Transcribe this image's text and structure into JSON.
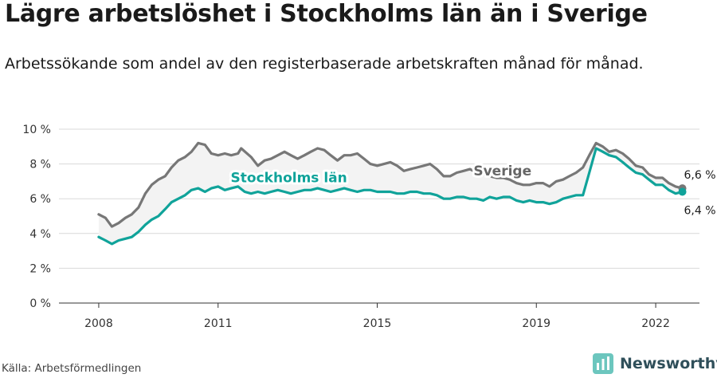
{
  "title": "Lägre arbetslöshet i Stockholms län än i Sverige",
  "subtitle": "Arbetssökande som andel av den registerbaserade arbetskraften månad för månad.",
  "source": "Källa: Arbetsförmedlingen",
  "brand": {
    "name": "Newsworthy",
    "icon": "bar-chart-logo-icon",
    "color": "#2f4f5a"
  },
  "chart_data": {
    "type": "line",
    "title": "Lägre arbetslöshet i Stockholms län än i Sverige",
    "xlabel": "",
    "ylabel": "",
    "ylim": [
      0,
      10
    ],
    "y_ticks": [
      0,
      2,
      4,
      6,
      8,
      10
    ],
    "y_tick_labels": [
      "0 %",
      "2 %",
      "4 %",
      "6 %",
      "8 %",
      "10 %"
    ],
    "x_ticks": [
      2008,
      2011,
      2015,
      2019,
      2022
    ],
    "x_tick_labels": [
      "2008",
      "2011",
      "2015",
      "2019",
      "2022"
    ],
    "grid": "horizontal",
    "area_between_series": true,
    "series": [
      {
        "name": "Sverige",
        "color": "#777777",
        "end_label": "6,6 %",
        "points": [
          [
            2008.0,
            5.1
          ],
          [
            2008.17,
            4.9
          ],
          [
            2008.33,
            4.4
          ],
          [
            2008.5,
            4.6
          ],
          [
            2008.67,
            4.9
          ],
          [
            2008.83,
            5.1
          ],
          [
            2009.0,
            5.5
          ],
          [
            2009.17,
            6.3
          ],
          [
            2009.33,
            6.8
          ],
          [
            2009.5,
            7.1
          ],
          [
            2009.67,
            7.3
          ],
          [
            2009.83,
            7.8
          ],
          [
            2010.0,
            8.2
          ],
          [
            2010.17,
            8.4
          ],
          [
            2010.33,
            8.7
          ],
          [
            2010.5,
            9.2
          ],
          [
            2010.67,
            9.1
          ],
          [
            2010.83,
            8.6
          ],
          [
            2011.0,
            8.5
          ],
          [
            2011.17,
            8.6
          ],
          [
            2011.33,
            8.5
          ],
          [
            2011.5,
            8.6
          ],
          [
            2011.58,
            8.9
          ],
          [
            2011.83,
            8.4
          ],
          [
            2012.0,
            7.9
          ],
          [
            2012.17,
            8.2
          ],
          [
            2012.33,
            8.3
          ],
          [
            2012.5,
            8.5
          ],
          [
            2012.67,
            8.7
          ],
          [
            2012.83,
            8.5
          ],
          [
            2013.0,
            8.3
          ],
          [
            2013.17,
            8.5
          ],
          [
            2013.33,
            8.7
          ],
          [
            2013.5,
            8.9
          ],
          [
            2013.67,
            8.8
          ],
          [
            2013.83,
            8.5
          ],
          [
            2014.0,
            8.2
          ],
          [
            2014.17,
            8.5
          ],
          [
            2014.33,
            8.5
          ],
          [
            2014.5,
            8.6
          ],
          [
            2014.67,
            8.3
          ],
          [
            2014.83,
            8.0
          ],
          [
            2015.0,
            7.9
          ],
          [
            2015.17,
            8.0
          ],
          [
            2015.33,
            8.1
          ],
          [
            2015.5,
            7.9
          ],
          [
            2015.67,
            7.6
          ],
          [
            2015.83,
            7.7
          ],
          [
            2016.0,
            7.8
          ],
          [
            2016.17,
            7.9
          ],
          [
            2016.33,
            8.0
          ],
          [
            2016.5,
            7.7
          ],
          [
            2016.67,
            7.3
          ],
          [
            2016.83,
            7.3
          ],
          [
            2017.0,
            7.5
          ],
          [
            2017.17,
            7.6
          ],
          [
            2017.33,
            7.7
          ],
          [
            2017.5,
            7.5
          ],
          [
            2017.67,
            7.4
          ],
          [
            2017.83,
            7.3
          ],
          [
            2018.0,
            7.2
          ],
          [
            2018.17,
            7.2
          ],
          [
            2018.33,
            7.1
          ],
          [
            2018.5,
            6.9
          ],
          [
            2018.67,
            6.8
          ],
          [
            2018.83,
            6.8
          ],
          [
            2019.0,
            6.9
          ],
          [
            2019.17,
            6.9
          ],
          [
            2019.33,
            6.7
          ],
          [
            2019.5,
            7.0
          ],
          [
            2019.67,
            7.1
          ],
          [
            2019.83,
            7.3
          ],
          [
            2020.0,
            7.5
          ],
          [
            2020.17,
            7.8
          ],
          [
            2020.33,
            8.5
          ],
          [
            2020.5,
            9.2
          ],
          [
            2020.67,
            9.0
          ],
          [
            2020.83,
            8.7
          ],
          [
            2021.0,
            8.8
          ],
          [
            2021.17,
            8.6
          ],
          [
            2021.33,
            8.3
          ],
          [
            2021.5,
            7.9
          ],
          [
            2021.67,
            7.8
          ],
          [
            2021.83,
            7.4
          ],
          [
            2022.0,
            7.2
          ],
          [
            2022.17,
            7.2
          ],
          [
            2022.33,
            6.9
          ],
          [
            2022.5,
            6.7
          ],
          [
            2022.67,
            6.6
          ]
        ]
      },
      {
        "name": "Stockholms län",
        "color": "#10a39a",
        "end_label": "6,4 %",
        "points": [
          [
            2008.0,
            3.8
          ],
          [
            2008.17,
            3.6
          ],
          [
            2008.33,
            3.4
          ],
          [
            2008.5,
            3.6
          ],
          [
            2008.67,
            3.7
          ],
          [
            2008.83,
            3.8
          ],
          [
            2009.0,
            4.1
          ],
          [
            2009.17,
            4.5
          ],
          [
            2009.33,
            4.8
          ],
          [
            2009.5,
            5.0
          ],
          [
            2009.67,
            5.4
          ],
          [
            2009.83,
            5.8
          ],
          [
            2010.0,
            6.0
          ],
          [
            2010.17,
            6.2
          ],
          [
            2010.33,
            6.5
          ],
          [
            2010.5,
            6.6
          ],
          [
            2010.67,
            6.4
          ],
          [
            2010.83,
            6.6
          ],
          [
            2011.0,
            6.7
          ],
          [
            2011.17,
            6.5
          ],
          [
            2011.33,
            6.6
          ],
          [
            2011.5,
            6.7
          ],
          [
            2011.67,
            6.4
          ],
          [
            2011.83,
            6.3
          ],
          [
            2012.0,
            6.4
          ],
          [
            2012.17,
            6.3
          ],
          [
            2012.33,
            6.4
          ],
          [
            2012.5,
            6.5
          ],
          [
            2012.67,
            6.4
          ],
          [
            2012.83,
            6.3
          ],
          [
            2013.0,
            6.4
          ],
          [
            2013.17,
            6.5
          ],
          [
            2013.33,
            6.5
          ],
          [
            2013.5,
            6.6
          ],
          [
            2013.67,
            6.5
          ],
          [
            2013.83,
            6.4
          ],
          [
            2014.0,
            6.5
          ],
          [
            2014.17,
            6.6
          ],
          [
            2014.33,
            6.5
          ],
          [
            2014.5,
            6.4
          ],
          [
            2014.67,
            6.5
          ],
          [
            2014.83,
            6.5
          ],
          [
            2015.0,
            6.4
          ],
          [
            2015.17,
            6.4
          ],
          [
            2015.33,
            6.4
          ],
          [
            2015.5,
            6.3
          ],
          [
            2015.67,
            6.3
          ],
          [
            2015.83,
            6.4
          ],
          [
            2016.0,
            6.4
          ],
          [
            2016.17,
            6.3
          ],
          [
            2016.33,
            6.3
          ],
          [
            2016.5,
            6.2
          ],
          [
            2016.67,
            6.0
          ],
          [
            2016.83,
            6.0
          ],
          [
            2017.0,
            6.1
          ],
          [
            2017.17,
            6.1
          ],
          [
            2017.33,
            6.0
          ],
          [
            2017.5,
            6.0
          ],
          [
            2017.67,
            5.9
          ],
          [
            2017.83,
            6.1
          ],
          [
            2018.0,
            6.0
          ],
          [
            2018.17,
            6.1
          ],
          [
            2018.33,
            6.1
          ],
          [
            2018.5,
            5.9
          ],
          [
            2018.67,
            5.8
          ],
          [
            2018.83,
            5.9
          ],
          [
            2019.0,
            5.8
          ],
          [
            2019.17,
            5.8
          ],
          [
            2019.33,
            5.7
          ],
          [
            2019.5,
            5.8
          ],
          [
            2019.67,
            6.0
          ],
          [
            2019.83,
            6.1
          ],
          [
            2020.0,
            6.2
          ],
          [
            2020.17,
            6.2
          ],
          [
            2020.33,
            7.5
          ],
          [
            2020.5,
            8.9
          ],
          [
            2020.67,
            8.7
          ],
          [
            2020.83,
            8.5
          ],
          [
            2021.0,
            8.4
          ],
          [
            2021.17,
            8.1
          ],
          [
            2021.33,
            7.8
          ],
          [
            2021.5,
            7.5
          ],
          [
            2021.67,
            7.4
          ],
          [
            2021.83,
            7.1
          ],
          [
            2022.0,
            6.8
          ],
          [
            2022.17,
            6.8
          ],
          [
            2022.33,
            6.5
          ],
          [
            2022.5,
            6.3
          ],
          [
            2022.67,
            6.4
          ]
        ]
      }
    ]
  }
}
